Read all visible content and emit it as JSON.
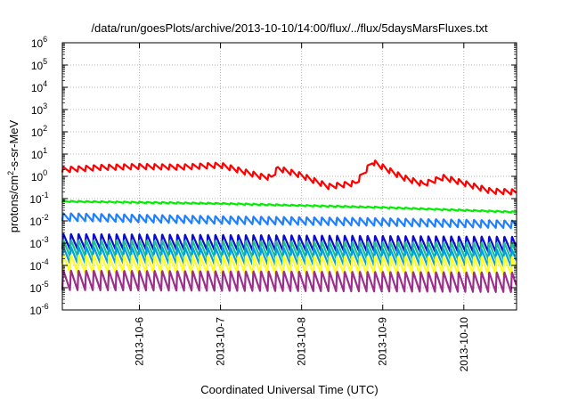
{
  "chart_data": {
    "type": "line",
    "title": "/data/run/goesPlots/archive/2013-10-10/14:00/flux/../flux/5daysMarsFluxes.txt",
    "xlabel": "Coordinated Universal Time (UTC)",
    "ylabel": "protons/cm²-s-sr-MeV",
    "ylabel_parts": {
      "before": "protons/cm",
      "sup": "2",
      "after": "-s-sr-MeV"
    },
    "yscale": "log",
    "ylim_exponents": [
      -6,
      6
    ],
    "y_tick_base": "10",
    "y_tick_exponents": [
      "-6",
      "-5",
      "-4",
      "-3",
      "-2",
      "-1",
      "0",
      "1",
      "2",
      "3",
      "4",
      "5",
      "6"
    ],
    "xlim_days": [
      "2013-10-05",
      "2013-10-10"
    ],
    "xlim_start_fraction": 0.05,
    "xlim_end_fraction": 0.65,
    "x_tick_labels": [
      "2013-10-6",
      "2013-10-7",
      "2013-10-8",
      "2013-10-9",
      "2013-10-10"
    ],
    "grid": true,
    "sawtooth_period_hours": 2.25,
    "series": [
      {
        "color": "#ff0000",
        "sawtooth_amplitude_log10": 0.25,
        "envelope": [
          {
            "t": "2013-10-05T02:00",
            "y": 2.0
          },
          {
            "t": "2013-10-05T12:00",
            "y": 2.5
          },
          {
            "t": "2013-10-06T00:00",
            "y": 2.8
          },
          {
            "t": "2013-10-06T12:00",
            "y": 2.6
          },
          {
            "t": "2013-10-07T00:00",
            "y": 3.2
          },
          {
            "t": "2013-10-07T04:00",
            "y": 2.2
          },
          {
            "t": "2013-10-07T12:00",
            "y": 1.0
          },
          {
            "t": "2013-10-07T15:00",
            "y": 0.9
          },
          {
            "t": "2013-10-07T17:00",
            "y": 2.3
          },
          {
            "t": "2013-10-08T00:00",
            "y": 1.1
          },
          {
            "t": "2013-10-08T08:00",
            "y": 0.35
          },
          {
            "t": "2013-10-08T16:00",
            "y": 0.5
          },
          {
            "t": "2013-10-08T21:00",
            "y": 4.5
          },
          {
            "t": "2013-10-09T06:00",
            "y": 0.9
          },
          {
            "t": "2013-10-09T12:00",
            "y": 0.45
          },
          {
            "t": "2013-10-09T18:00",
            "y": 0.9
          },
          {
            "t": "2013-10-10T00:00",
            "y": 0.5
          },
          {
            "t": "2013-10-10T08:00",
            "y": 0.22
          },
          {
            "t": "2013-10-10T15:00",
            "y": 0.2
          }
        ]
      },
      {
        "color": "#00ee00",
        "sawtooth_amplitude_log10": 0.06,
        "envelope": [
          {
            "t": "2013-10-05T02:00",
            "y": 0.075
          },
          {
            "t": "2013-10-07T00:00",
            "y": 0.06
          },
          {
            "t": "2013-10-09T00:00",
            "y": 0.04
          },
          {
            "t": "2013-10-10T15:00",
            "y": 0.025
          }
        ]
      },
      {
        "color": "#1e7fff",
        "sawtooth_amplitude_log10": 0.35,
        "envelope": [
          {
            "t": "2013-10-05T02:00",
            "y": 0.015
          },
          {
            "t": "2013-10-07T00:00",
            "y": 0.011
          },
          {
            "t": "2013-10-09T00:00",
            "y": 0.009
          },
          {
            "t": "2013-10-10T15:00",
            "y": 0.007
          }
        ]
      },
      {
        "color": "#0a0ad0",
        "sawtooth_amplitude_log10": 0.7,
        "envelope": [
          {
            "t": "2013-10-05T02:00",
            "y": 0.0012
          },
          {
            "t": "2013-10-10T15:00",
            "y": 0.0009
          }
        ]
      },
      {
        "color": "#1fbf8f",
        "sawtooth_amplitude_log10": 0.75,
        "envelope": [
          {
            "t": "2013-10-05T02:00",
            "y": 0.0006
          },
          {
            "t": "2013-10-10T15:00",
            "y": 0.00045
          }
        ]
      },
      {
        "color": "#00a0e0",
        "sawtooth_amplitude_log10": 0.75,
        "envelope": [
          {
            "t": "2013-10-05T02:00",
            "y": 0.0003
          },
          {
            "t": "2013-10-10T15:00",
            "y": 0.00022
          }
        ]
      },
      {
        "color": "#ffff22",
        "sawtooth_amplitude_log10": 0.8,
        "envelope": [
          {
            "t": "2013-10-05T02:00",
            "y": 0.00012
          },
          {
            "t": "2013-10-10T15:00",
            "y": 0.0001
          }
        ]
      },
      {
        "color": "#9b2f8a",
        "sawtooth_amplitude_log10": 0.9,
        "envelope": [
          {
            "t": "2013-10-05T02:00",
            "y": 2.2e-05
          },
          {
            "t": "2013-10-10T15:00",
            "y": 1.8e-05
          }
        ]
      }
    ]
  }
}
